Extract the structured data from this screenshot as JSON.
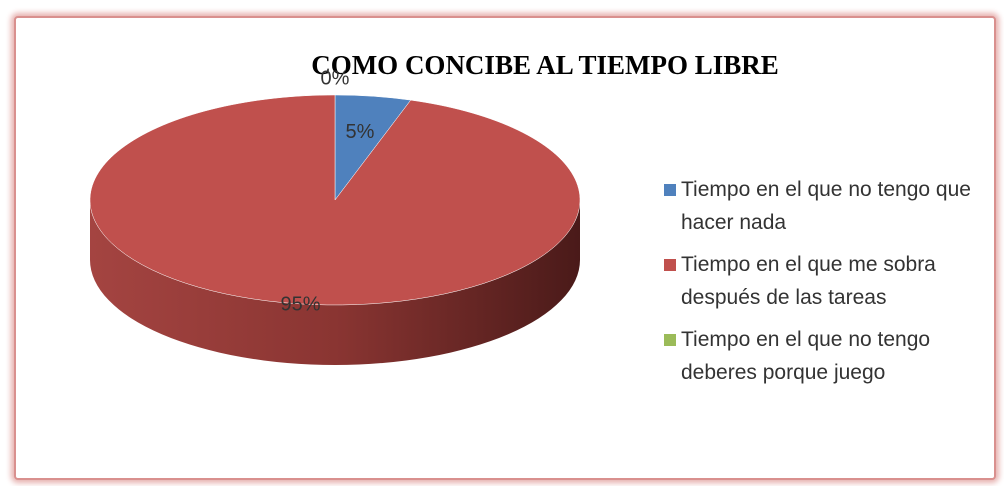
{
  "chart_data": {
    "type": "pie",
    "title": "COMO CONCIBE AL TIEMPO LIBRE",
    "categories": [
      "Tiempo en el que no tengo que hacer nada",
      "Tiempo en el que me sobra después de las tareas",
      "Tiempo en el que no tengo deberes porque juego"
    ],
    "values": [
      5,
      95,
      0
    ],
    "value_labels": [
      "5%",
      "95%",
      "0%"
    ],
    "colors": [
      "#4f81bd",
      "#c0504d",
      "#9bbb59"
    ],
    "legend": "right"
  }
}
